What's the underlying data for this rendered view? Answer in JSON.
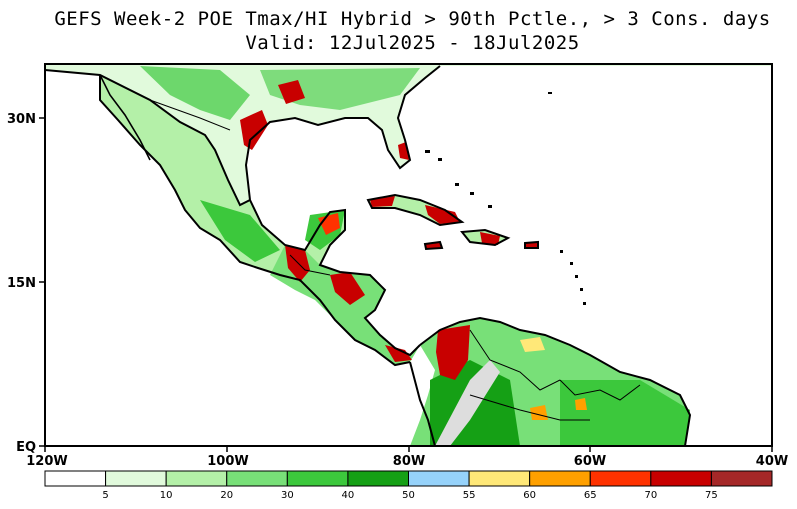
{
  "title": {
    "line1": "GEFS Week-2 POE Tmax/HI Hybrid > 90th Pctle., > 3 Cons. days",
    "line2": "Valid: 12Jul2025 - 18Jul2025"
  },
  "axes": {
    "x_ticks": [
      "120W",
      "100W",
      "80W",
      "60W",
      "40W"
    ],
    "y_ticks": [
      "30N",
      "15N",
      "EQ"
    ]
  },
  "colorbar": {
    "labels": [
      "5",
      "10",
      "20",
      "30",
      "40",
      "50",
      "55",
      "60",
      "65",
      "70",
      "75"
    ],
    "colors": [
      "#ffffff",
      "#e1fadc",
      "#b4f0a8",
      "#78e078",
      "#3cc83c",
      "#15a015",
      "#96d2fa",
      "#ffe878",
      "#ffa000",
      "#ff3200",
      "#c80000",
      "#a52828"
    ]
  }
}
